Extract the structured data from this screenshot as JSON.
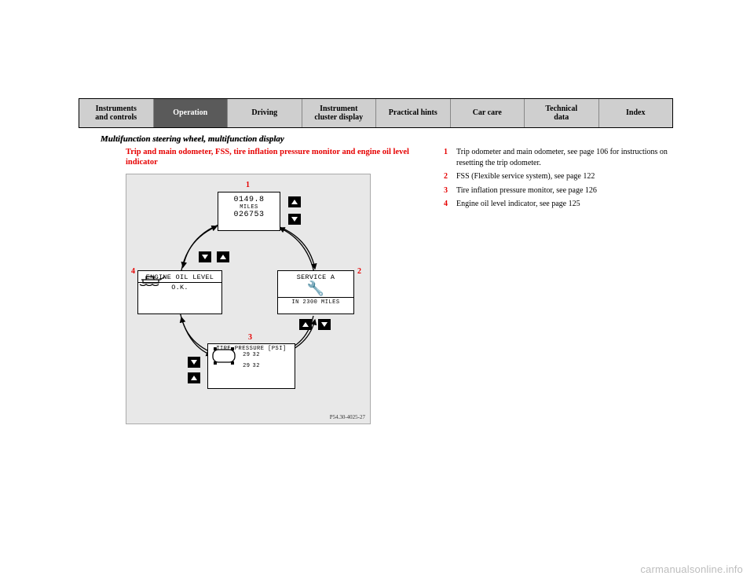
{
  "tabs": [
    {
      "label": "Instruments\nand controls",
      "bg": "#cfcfcf",
      "fg": "#000000"
    },
    {
      "label": "Operation",
      "bg": "#5a5a5a",
      "fg": "#ffffff"
    },
    {
      "label": "Driving",
      "bg": "#cfcfcf",
      "fg": "#000000"
    },
    {
      "label": "Instrument\ncluster display",
      "bg": "#cfcfcf",
      "fg": "#000000"
    },
    {
      "label": "Practical hints",
      "bg": "#cfcfcf",
      "fg": "#000000"
    },
    {
      "label": "Car care",
      "bg": "#cfcfcf",
      "fg": "#000000"
    },
    {
      "label": "Technical\ndata",
      "bg": "#cfcfcf",
      "fg": "#000000"
    },
    {
      "label": "Index",
      "bg": "#cfcfcf",
      "fg": "#000000"
    }
  ],
  "section_title": "Multifunction steering wheel, multifunction display",
  "subhead": "Trip and main odometer, FSS, tire inflation pressure monitor and engine oil level indicator",
  "diagram": {
    "bg": "#e8e8e8",
    "code": "P54.30-4025-27",
    "labels": {
      "n1": "1",
      "n2": "2",
      "n3": "3",
      "n4": "4"
    },
    "odometer": {
      "trip": "0149.8",
      "unit": "MILES",
      "main": "026753"
    },
    "service": {
      "title": "SERVICE A",
      "line": "IN 2300 MILES"
    },
    "tire": {
      "title": "TIRE PRESSURE [PSI]",
      "fl": "29",
      "fr": "32",
      "rl": "29",
      "rr": "32"
    },
    "oil": {
      "title": "ENGINE OIL LEVEL",
      "status": "O.K."
    }
  },
  "legend": {
    "i1": {
      "num": "1",
      "text": "Trip odometer and main odometer, see page 106 for instructions on resetting the trip odometer."
    },
    "i2": {
      "num": "2",
      "text": "FSS (Flexible service system), see page 122"
    },
    "i3": {
      "num": "3",
      "text": "Tire inflation pressure monitor, see page 126"
    },
    "i4": {
      "num": "4",
      "text": "Engine oil level indicator, see page 125"
    }
  },
  "watermark": "carmanualsonline.info"
}
